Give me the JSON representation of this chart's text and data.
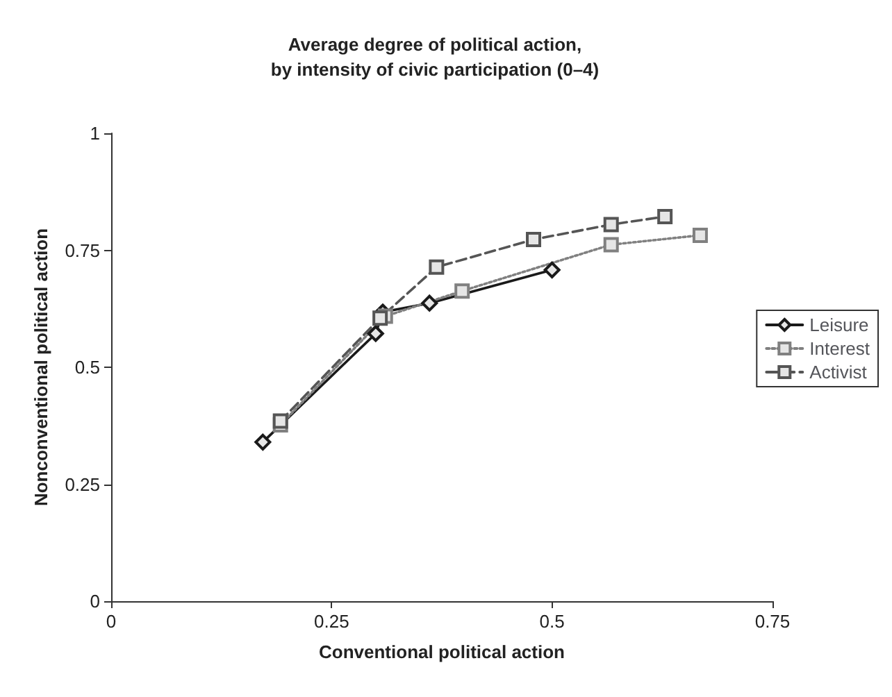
{
  "chart_data": {
    "type": "line",
    "title": "Average degree of political action,\nby intensity of civic participation (0–4)",
    "xlabel": "Conventional political action",
    "ylabel": "Nonconventional political action",
    "xlim": [
      0,
      0.75
    ],
    "xticks": [
      0,
      0.25,
      0.5,
      0.75
    ],
    "ylim": [
      0,
      1
    ],
    "yticks": [
      0,
      0.25,
      0.5,
      0.75,
      1
    ],
    "grid": false,
    "legend": "right",
    "series": [
      {
        "name": "Leisure",
        "color": "#1a1a1a",
        "marker": "diamond",
        "line_style": "solid",
        "x": [
          0.172,
          0.3,
          0.308,
          0.361,
          0.5
        ],
        "values": [
          0.34,
          0.572,
          0.618,
          0.637,
          0.708
        ]
      },
      {
        "name": "Interest",
        "color": "#808080",
        "marker": "square",
        "line_style": "dotted",
        "x": [
          0.192,
          0.311,
          0.398,
          0.567,
          0.668
        ],
        "values": [
          0.377,
          0.609,
          0.663,
          0.762,
          0.782
        ]
      },
      {
        "name": "Activist",
        "color": "#555555",
        "marker": "square",
        "line_style": "dashed",
        "x": [
          0.192,
          0.305,
          0.369,
          0.479,
          0.567,
          0.628
        ],
        "values": [
          0.385,
          0.605,
          0.714,
          0.773,
          0.805,
          0.822
        ]
      }
    ]
  }
}
